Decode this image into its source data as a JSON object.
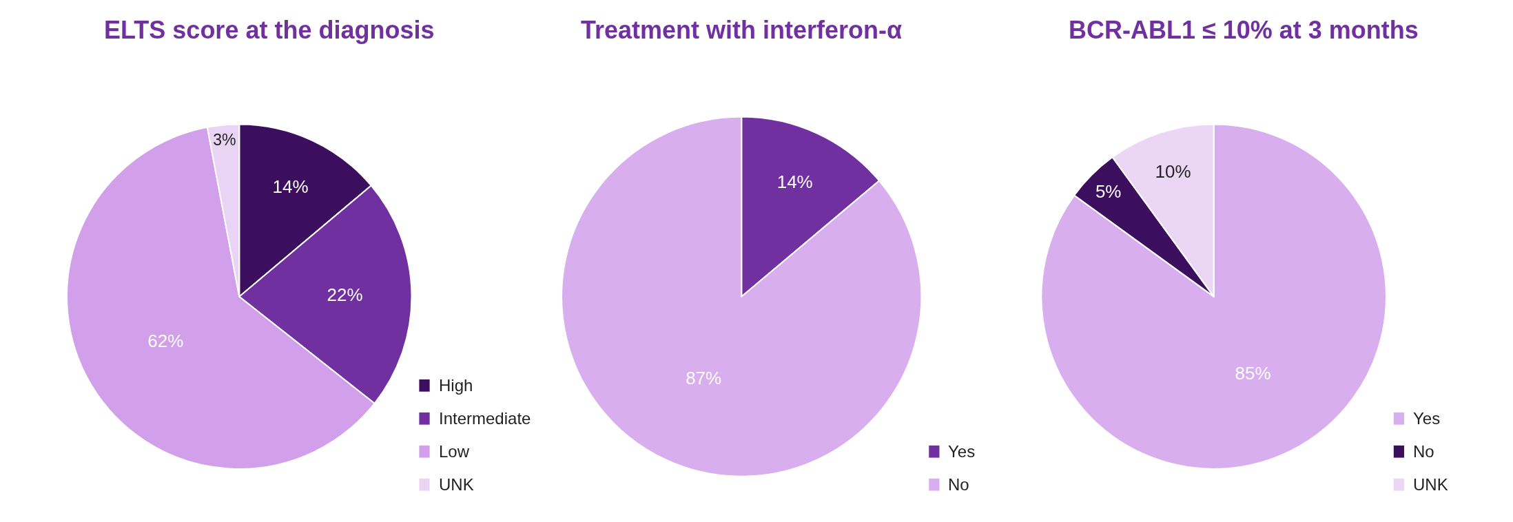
{
  "chart_data": [
    {
      "type": "pie",
      "title": "ELTS score at the diagnosis",
      "categories": [
        "High",
        "Intermediate",
        "Low",
        "UNK"
      ],
      "values": [
        14,
        22,
        62,
        3
      ],
      "colors": [
        "#3c0f5e",
        "#7030a0",
        "#d29fea",
        "#ead4f5"
      ],
      "value_labels": [
        "14%",
        "22%",
        "62%",
        "3%"
      ],
      "legend": "bottom right"
    },
    {
      "type": "pie",
      "title": "Treatment with interferon-α",
      "categories": [
        "Yes",
        "No"
      ],
      "values": [
        14,
        87
      ],
      "colors": [
        "#7030a0",
        "#d8aeee"
      ],
      "value_labels": [
        "14%",
        "87%"
      ],
      "legend": "bottom right"
    },
    {
      "type": "pie",
      "title": "BCR-ABL1 ≤ 10% at 3 months",
      "categories": [
        "Yes",
        "No",
        "UNK"
      ],
      "values": [
        85,
        5,
        10
      ],
      "colors": [
        "#d8aeee",
        "#3c0f5e",
        "#ecd6f6"
      ],
      "value_labels": [
        "85%",
        "5%",
        "10%"
      ],
      "legend": "bottom right"
    }
  ]
}
